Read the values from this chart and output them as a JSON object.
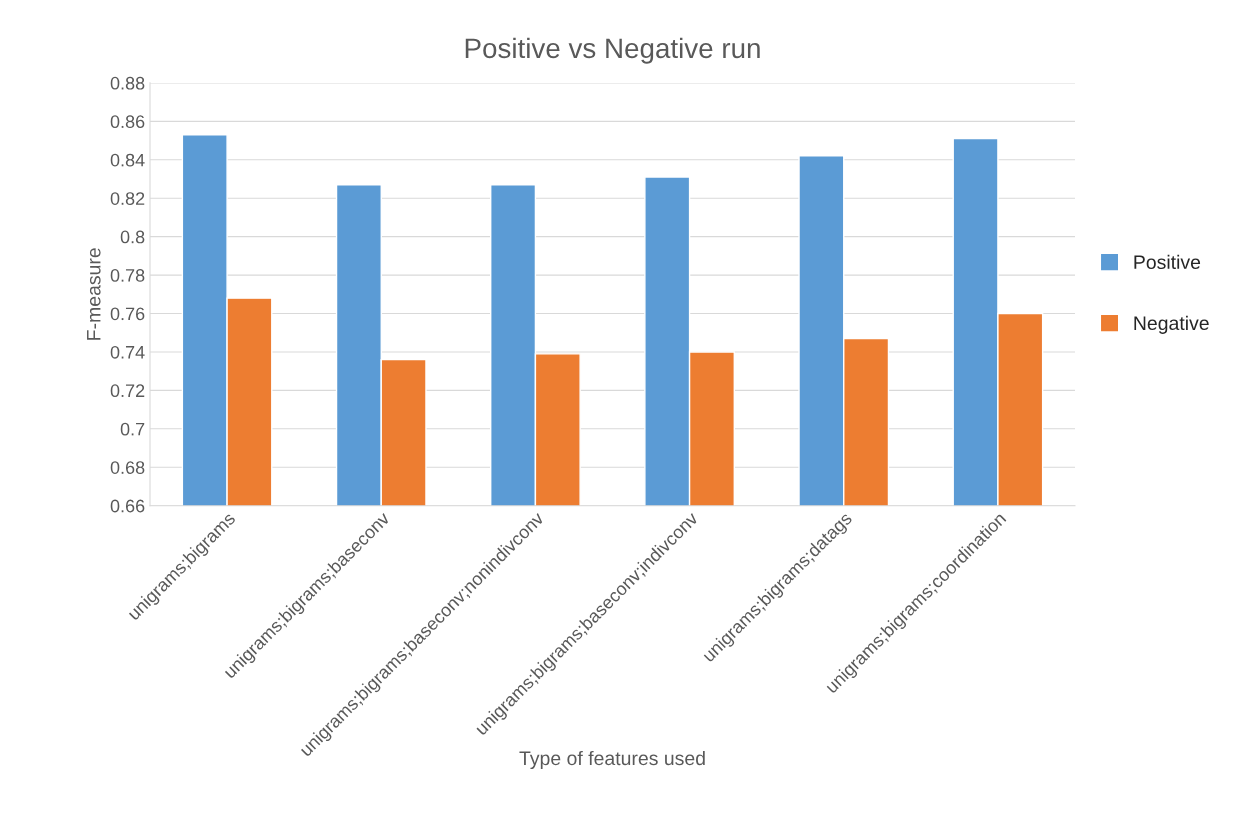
{
  "chart_data": {
    "type": "bar",
    "title": "Positive vs Negative run",
    "xlabel": "Type of features used",
    "ylabel": "F-measure",
    "categories": [
      "unigrams;bigrams",
      "unigrams;bigrams;baseconv",
      "unigrams;bigrams;baseconv;nonindivconv",
      "unigrams;bigrams;baseconv;indivconv",
      "unigrams;bigrams;datags",
      "unigrams;bigrams;coordination"
    ],
    "series": [
      {
        "name": "Positive",
        "color": "#5b9bd5",
        "values": [
          0.853,
          0.827,
          0.827,
          0.831,
          0.842,
          0.851
        ]
      },
      {
        "name": "Negative",
        "color": "#ed7d31",
        "values": [
          0.768,
          0.736,
          0.739,
          0.74,
          0.747,
          0.76
        ]
      }
    ],
    "ylim": [
      0.66,
      0.88
    ],
    "yticks": [
      0.66,
      0.68,
      0.7,
      0.72,
      0.74,
      0.76,
      0.78,
      0.8,
      0.82,
      0.84,
      0.86,
      0.88
    ],
    "grid": "y",
    "legend": "right"
  }
}
